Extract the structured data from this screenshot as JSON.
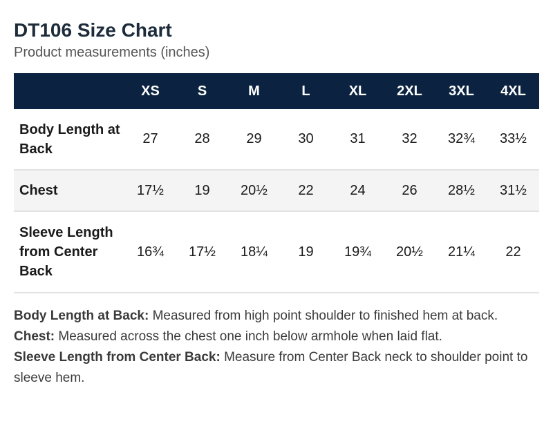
{
  "header": {
    "title": "DT106 Size Chart",
    "subtitle": "Product measurements (inches)"
  },
  "table": {
    "columns": [
      "XS",
      "S",
      "M",
      "L",
      "XL",
      "2XL",
      "3XL",
      "4XL"
    ],
    "rows": [
      {
        "label": "Body Length at Back",
        "values": [
          "27",
          "28",
          "29",
          "30",
          "31",
          "32",
          "32¾",
          "33½"
        ]
      },
      {
        "label": "Chest",
        "values": [
          "17½",
          "19",
          "20½",
          "22",
          "24",
          "26",
          "28½",
          "31½"
        ]
      },
      {
        "label": "Sleeve Length from Center Back",
        "values": [
          "16¾",
          "17½",
          "18¼",
          "19",
          "19¾",
          "20½",
          "21¼",
          "22"
        ]
      }
    ]
  },
  "notes": [
    {
      "term": "Body Length at Back:",
      "text": " Measured from high point shoulder to finished hem at back."
    },
    {
      "term": "Chest:",
      "text": " Measured across the chest one inch below armhole when laid flat."
    },
    {
      "term": "Sleeve Length from Center Back:",
      "text": " Measure from Center Back neck to shoulder point to sleeve hem."
    }
  ],
  "colors": {
    "header_bg": "#0b2340",
    "title": "#1d2b3a",
    "stripe": "#f4f4f4"
  }
}
